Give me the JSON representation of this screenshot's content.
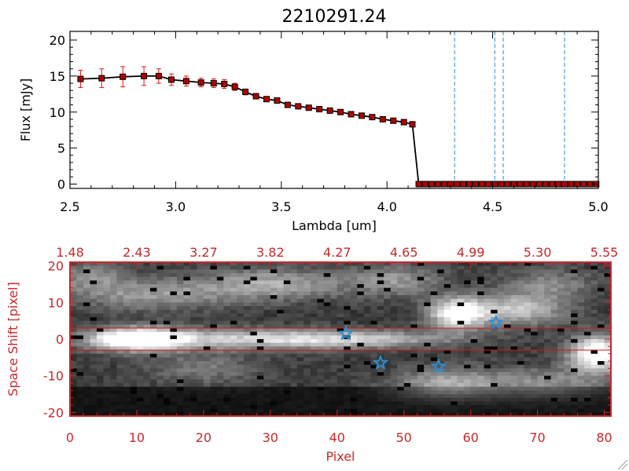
{
  "colors": {
    "spectrum_axes": "#000000",
    "spectrum_line": "#000000",
    "marker": "#b00000",
    "error_bar": "#d01818",
    "line_marker": "#2a8fd6",
    "image_axes": "#c8282c",
    "aperture_line": "#d01818",
    "star": "#2a8fd6"
  },
  "chart_data": [
    {
      "type": "line",
      "title": "2210291.24",
      "xlabel": "Lambda [um]",
      "ylabel": "Flux [mJy]",
      "xlim": [
        2.5,
        5.0
      ],
      "ylim": [
        0,
        20
      ],
      "xticks": [
        "2.5",
        "3.0",
        "3.5",
        "4.0",
        "4.5",
        "5.0"
      ],
      "yticks": [
        "0",
        "5",
        "10",
        "15",
        "20"
      ],
      "grid": false,
      "series": [
        {
          "x": [
            2.55,
            2.65,
            2.75,
            2.85,
            2.92,
            2.98,
            3.05,
            3.12,
            3.18,
            3.23,
            3.28,
            3.33,
            3.38,
            3.43,
            3.48,
            3.53,
            3.58,
            3.63,
            3.68,
            3.73,
            3.78,
            3.83,
            3.88,
            3.93,
            3.98,
            4.03,
            4.08,
            4.12,
            4.15,
            4.18,
            4.21,
            4.24,
            4.27,
            4.3,
            4.33,
            4.36,
            4.39,
            4.42,
            4.45,
            4.48,
            4.51,
            4.54,
            4.57,
            4.6,
            4.63,
            4.66,
            4.69,
            4.72,
            4.75,
            4.78,
            4.81,
            4.84,
            4.87,
            4.9,
            4.93,
            4.96,
            4.99
          ],
          "y": [
            14.6,
            14.7,
            14.9,
            15.0,
            15.0,
            14.5,
            14.3,
            14.1,
            14.0,
            13.9,
            13.5,
            12.8,
            12.2,
            11.8,
            11.6,
            11.0,
            10.8,
            10.6,
            10.4,
            10.2,
            10.0,
            9.7,
            9.5,
            9.3,
            9.0,
            8.8,
            8.6,
            8.3,
            0,
            0,
            0,
            0,
            0,
            0,
            0,
            0,
            0,
            0,
            0,
            0,
            0,
            0,
            0,
            0,
            0,
            0,
            0,
            0,
            0,
            0,
            0,
            0,
            0,
            0,
            0,
            0,
            0
          ],
          "yerr": [
            1.2,
            1.3,
            1.4,
            1.3,
            1.0,
            0.8,
            0.7,
            0.6,
            0.6,
            0.6,
            0.5,
            0.4,
            0.3,
            0.2,
            0.2,
            0.2,
            0.2,
            0.2,
            0.2,
            0.2,
            0.2,
            0.2,
            0.2,
            0.2,
            0.2,
            0.2,
            0.2,
            0.2,
            0,
            0,
            0,
            0,
            0,
            0,
            0,
            0,
            0,
            0,
            0,
            0,
            0,
            0,
            0,
            0,
            0,
            0,
            0,
            0,
            0,
            0,
            0,
            0,
            0,
            0,
            0,
            0,
            0
          ]
        }
      ],
      "vertical_lines_x": [
        4.32,
        4.51,
        4.55,
        4.84
      ]
    },
    {
      "type": "heatmap",
      "xlabel": "Pixel",
      "ylabel": "Space Shift [pixel]",
      "xlim": [
        0,
        81
      ],
      "ylim": [
        -21,
        21
      ],
      "xticks": [
        "0",
        "10",
        "20",
        "30",
        "40",
        "50",
        "60",
        "70",
        "80"
      ],
      "yticks": [
        "-20",
        "-10",
        "0",
        "10",
        "20"
      ],
      "top_axis_ticks": [
        "1.48",
        "2.43",
        "3.27",
        "3.82",
        "4.27",
        "4.65",
        "4.99",
        "5.30",
        "5.55"
      ],
      "aperture_lines_y": [
        3,
        -3
      ],
      "stars": [
        {
          "x": 41.3,
          "y": 1.5
        },
        {
          "x": 46.5,
          "y": -6.5
        },
        {
          "x": 55.2,
          "y": -7.5
        },
        {
          "x": 63.8,
          "y": 4.5
        }
      ],
      "blobs": [
        {
          "x": 10,
          "y": 0,
          "sx": 5,
          "sy": 2.2,
          "a": 0.95
        },
        {
          "x": 28,
          "y": 0,
          "sx": 14,
          "sy": 2.0,
          "a": 0.55
        },
        {
          "x": 45,
          "y": 0,
          "sx": 10,
          "sy": 1.6,
          "a": 0.32
        },
        {
          "x": 79,
          "y": -4,
          "sx": 3,
          "sy": 3.5,
          "a": 0.95
        },
        {
          "x": 58,
          "y": 7,
          "sx": 3,
          "sy": 3,
          "a": 0.85
        },
        {
          "x": 67,
          "y": 8,
          "sx": 5,
          "sy": 3,
          "a": 0.55
        },
        {
          "x": 30,
          "y": 15,
          "sx": 8,
          "sy": 3,
          "a": 0.45
        },
        {
          "x": 12,
          "y": 12,
          "sx": 8,
          "sy": 3,
          "a": 0.35
        },
        {
          "x": 57,
          "y": -12,
          "sx": 6,
          "sy": 3,
          "a": 0.45
        },
        {
          "x": 49,
          "y": 16,
          "sx": 5,
          "sy": 3,
          "a": 0.35
        },
        {
          "x": 3,
          "y": 17,
          "sx": 4,
          "sy": 3,
          "a": 0.3
        },
        {
          "x": 72,
          "y": 15,
          "sx": 5,
          "sy": 3,
          "a": 0.3
        },
        {
          "x": 72,
          "y": -12,
          "sx": 6,
          "sy": 3,
          "a": 0.3
        },
        {
          "x": 20,
          "y": -8,
          "sx": 6,
          "sy": 3,
          "a": 0.25
        }
      ]
    }
  ]
}
